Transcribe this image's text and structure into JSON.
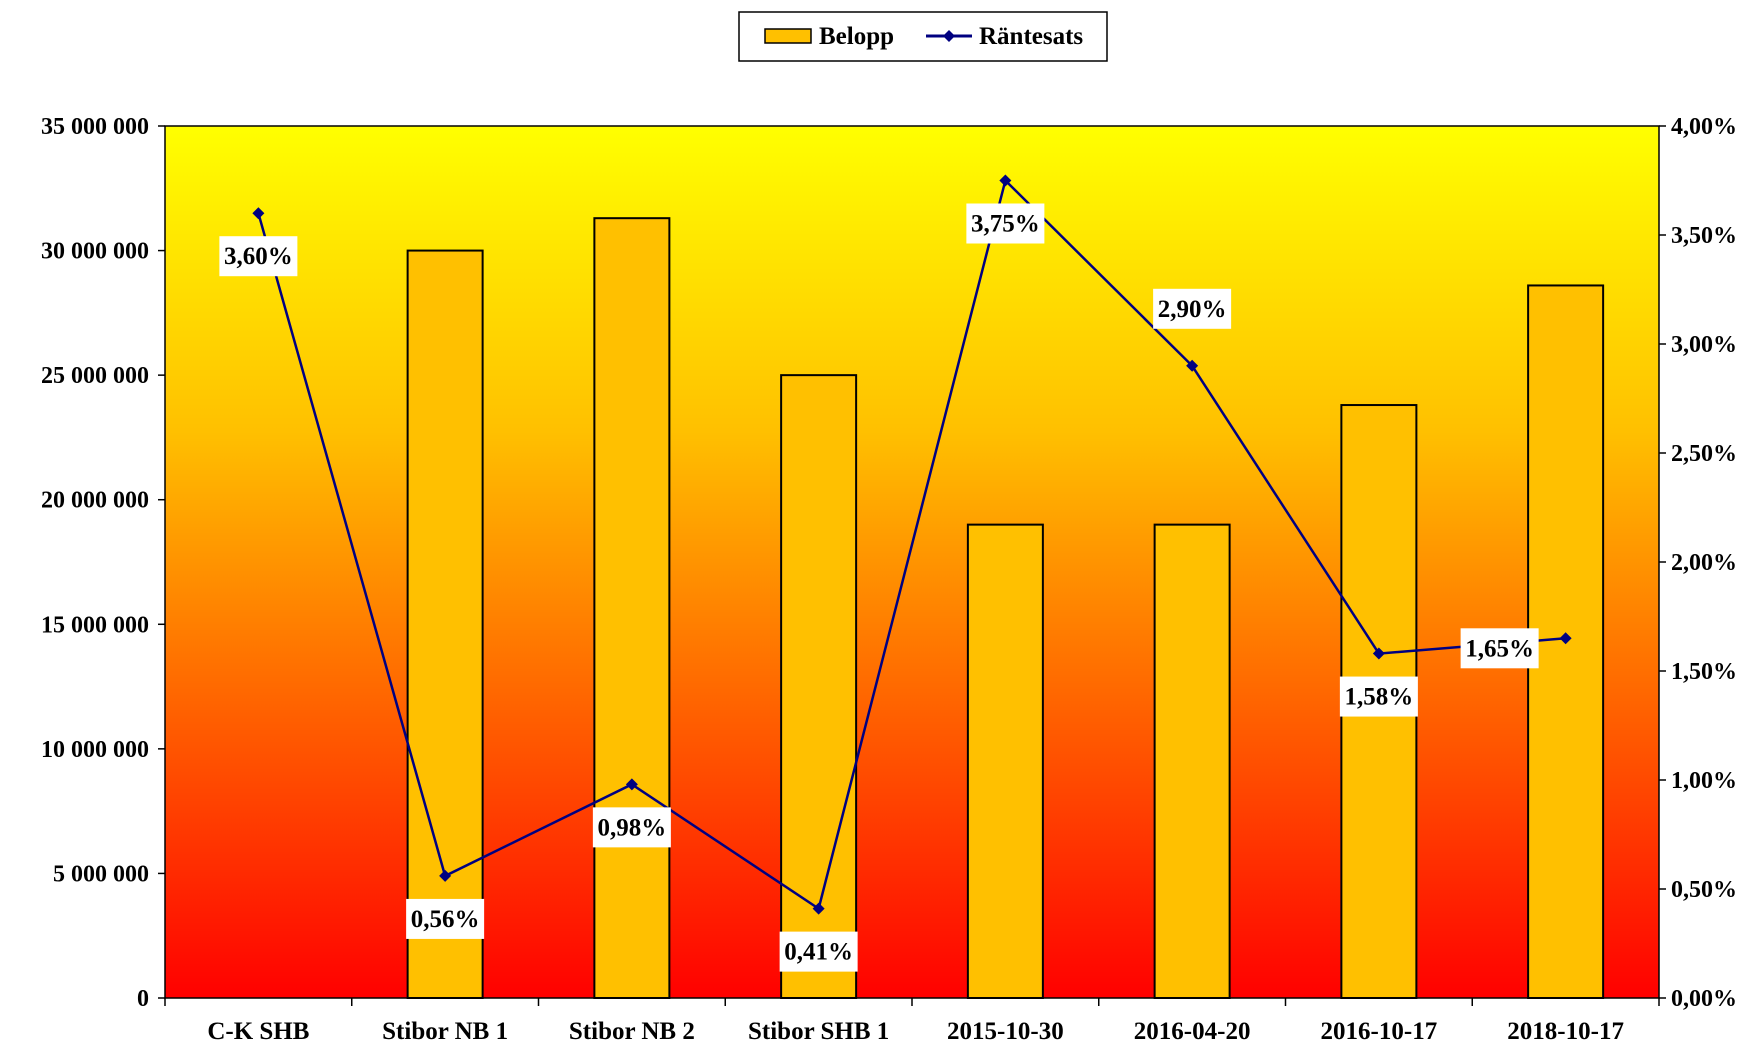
{
  "chart_data": {
    "type": "bar",
    "categories": [
      "C-K SHB",
      "Stibor NB 1",
      "Stibor NB 2",
      "Stibor SHB 1",
      "2015-10-30",
      "2016-04-20",
      "2016-10-17",
      "2018-10-17"
    ],
    "series": [
      {
        "name": "Belopp",
        "type": "bar",
        "axis": "left",
        "values": [
          0,
          30000000,
          31300000,
          25000000,
          19000000,
          19000000,
          23800000,
          28600000
        ],
        "color": "#FFC000"
      },
      {
        "name": "Räntesats",
        "type": "line",
        "axis": "right",
        "values": [
          3.6,
          0.56,
          0.98,
          0.41,
          3.75,
          2.9,
          1.58,
          1.65
        ],
        "labels": [
          "3,60%",
          "0,56%",
          "0,98%",
          "0,41%",
          "3,75%",
          "2,90%",
          "1,58%",
          "1,65%"
        ],
        "color": "#000080"
      }
    ],
    "y_left": {
      "lim": [
        0,
        35000000
      ],
      "ticks": [
        0,
        5000000,
        10000000,
        15000000,
        20000000,
        25000000,
        30000000,
        35000000
      ],
      "tick_labels": [
        "0",
        "5 000 000",
        "10 000 000",
        "15 000 000",
        "20 000 000",
        "25 000 000",
        "30 000 000",
        "35 000 000"
      ]
    },
    "y_right": {
      "lim": [
        0,
        4
      ],
      "ticks": [
        0,
        0.5,
        1,
        1.5,
        2,
        2.5,
        3,
        3.5,
        4
      ],
      "tick_labels": [
        "0,00%",
        "0,50%",
        "1,00%",
        "1,50%",
        "2,00%",
        "2,50%",
        "3,00%",
        "3,50%",
        "4,00%"
      ]
    },
    "legend": {
      "position": "top-center",
      "items": [
        "Belopp",
        "Räntesats"
      ]
    },
    "grid": false,
    "plot_background": {
      "top_color": "#FFFF00",
      "bottom_color": "#FF0000"
    }
  }
}
